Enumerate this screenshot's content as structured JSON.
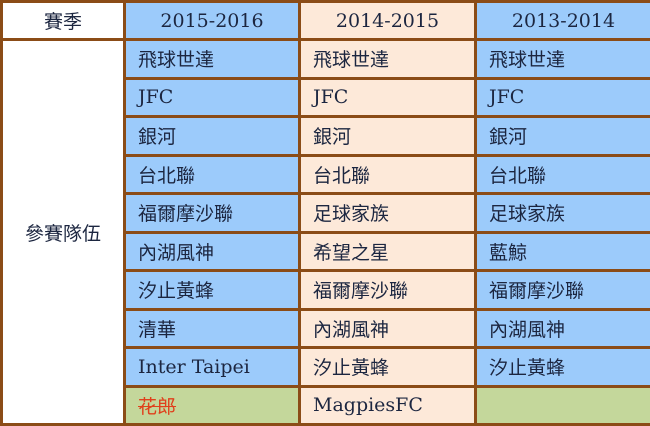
{
  "header": {
    "season_label": "賽季",
    "seasons": [
      "2015-2016",
      "2014-2015",
      "2013-2014"
    ]
  },
  "row_label": "參賽隊伍",
  "columns": [
    [
      "飛球世達",
      "JFC",
      "銀河",
      "台北聯",
      "福爾摩沙聯",
      "內湖風神",
      "汐止黃蜂",
      "清華",
      "Inter Taipei",
      "花郎"
    ],
    [
      "飛球世達",
      "JFC",
      "銀河",
      "台北聯",
      "足球家族",
      "希望之星",
      "福爾摩沙聯",
      "內湖風神",
      "汐止黃蜂",
      "MagpiesFC"
    ],
    [
      "飛球世達",
      "JFC",
      "銀河",
      "台北聯",
      "足球家族",
      "藍鯨",
      "福爾摩沙聯",
      "內湖風神",
      "汐止黃蜂",
      ""
    ]
  ],
  "struck_entries": [
    "花郎"
  ],
  "colors": {
    "border": "#8b4c17",
    "blue": "#9ccbfb",
    "peach": "#fde9d9",
    "green": "#c4d79b",
    "strike": "#e0401c"
  }
}
